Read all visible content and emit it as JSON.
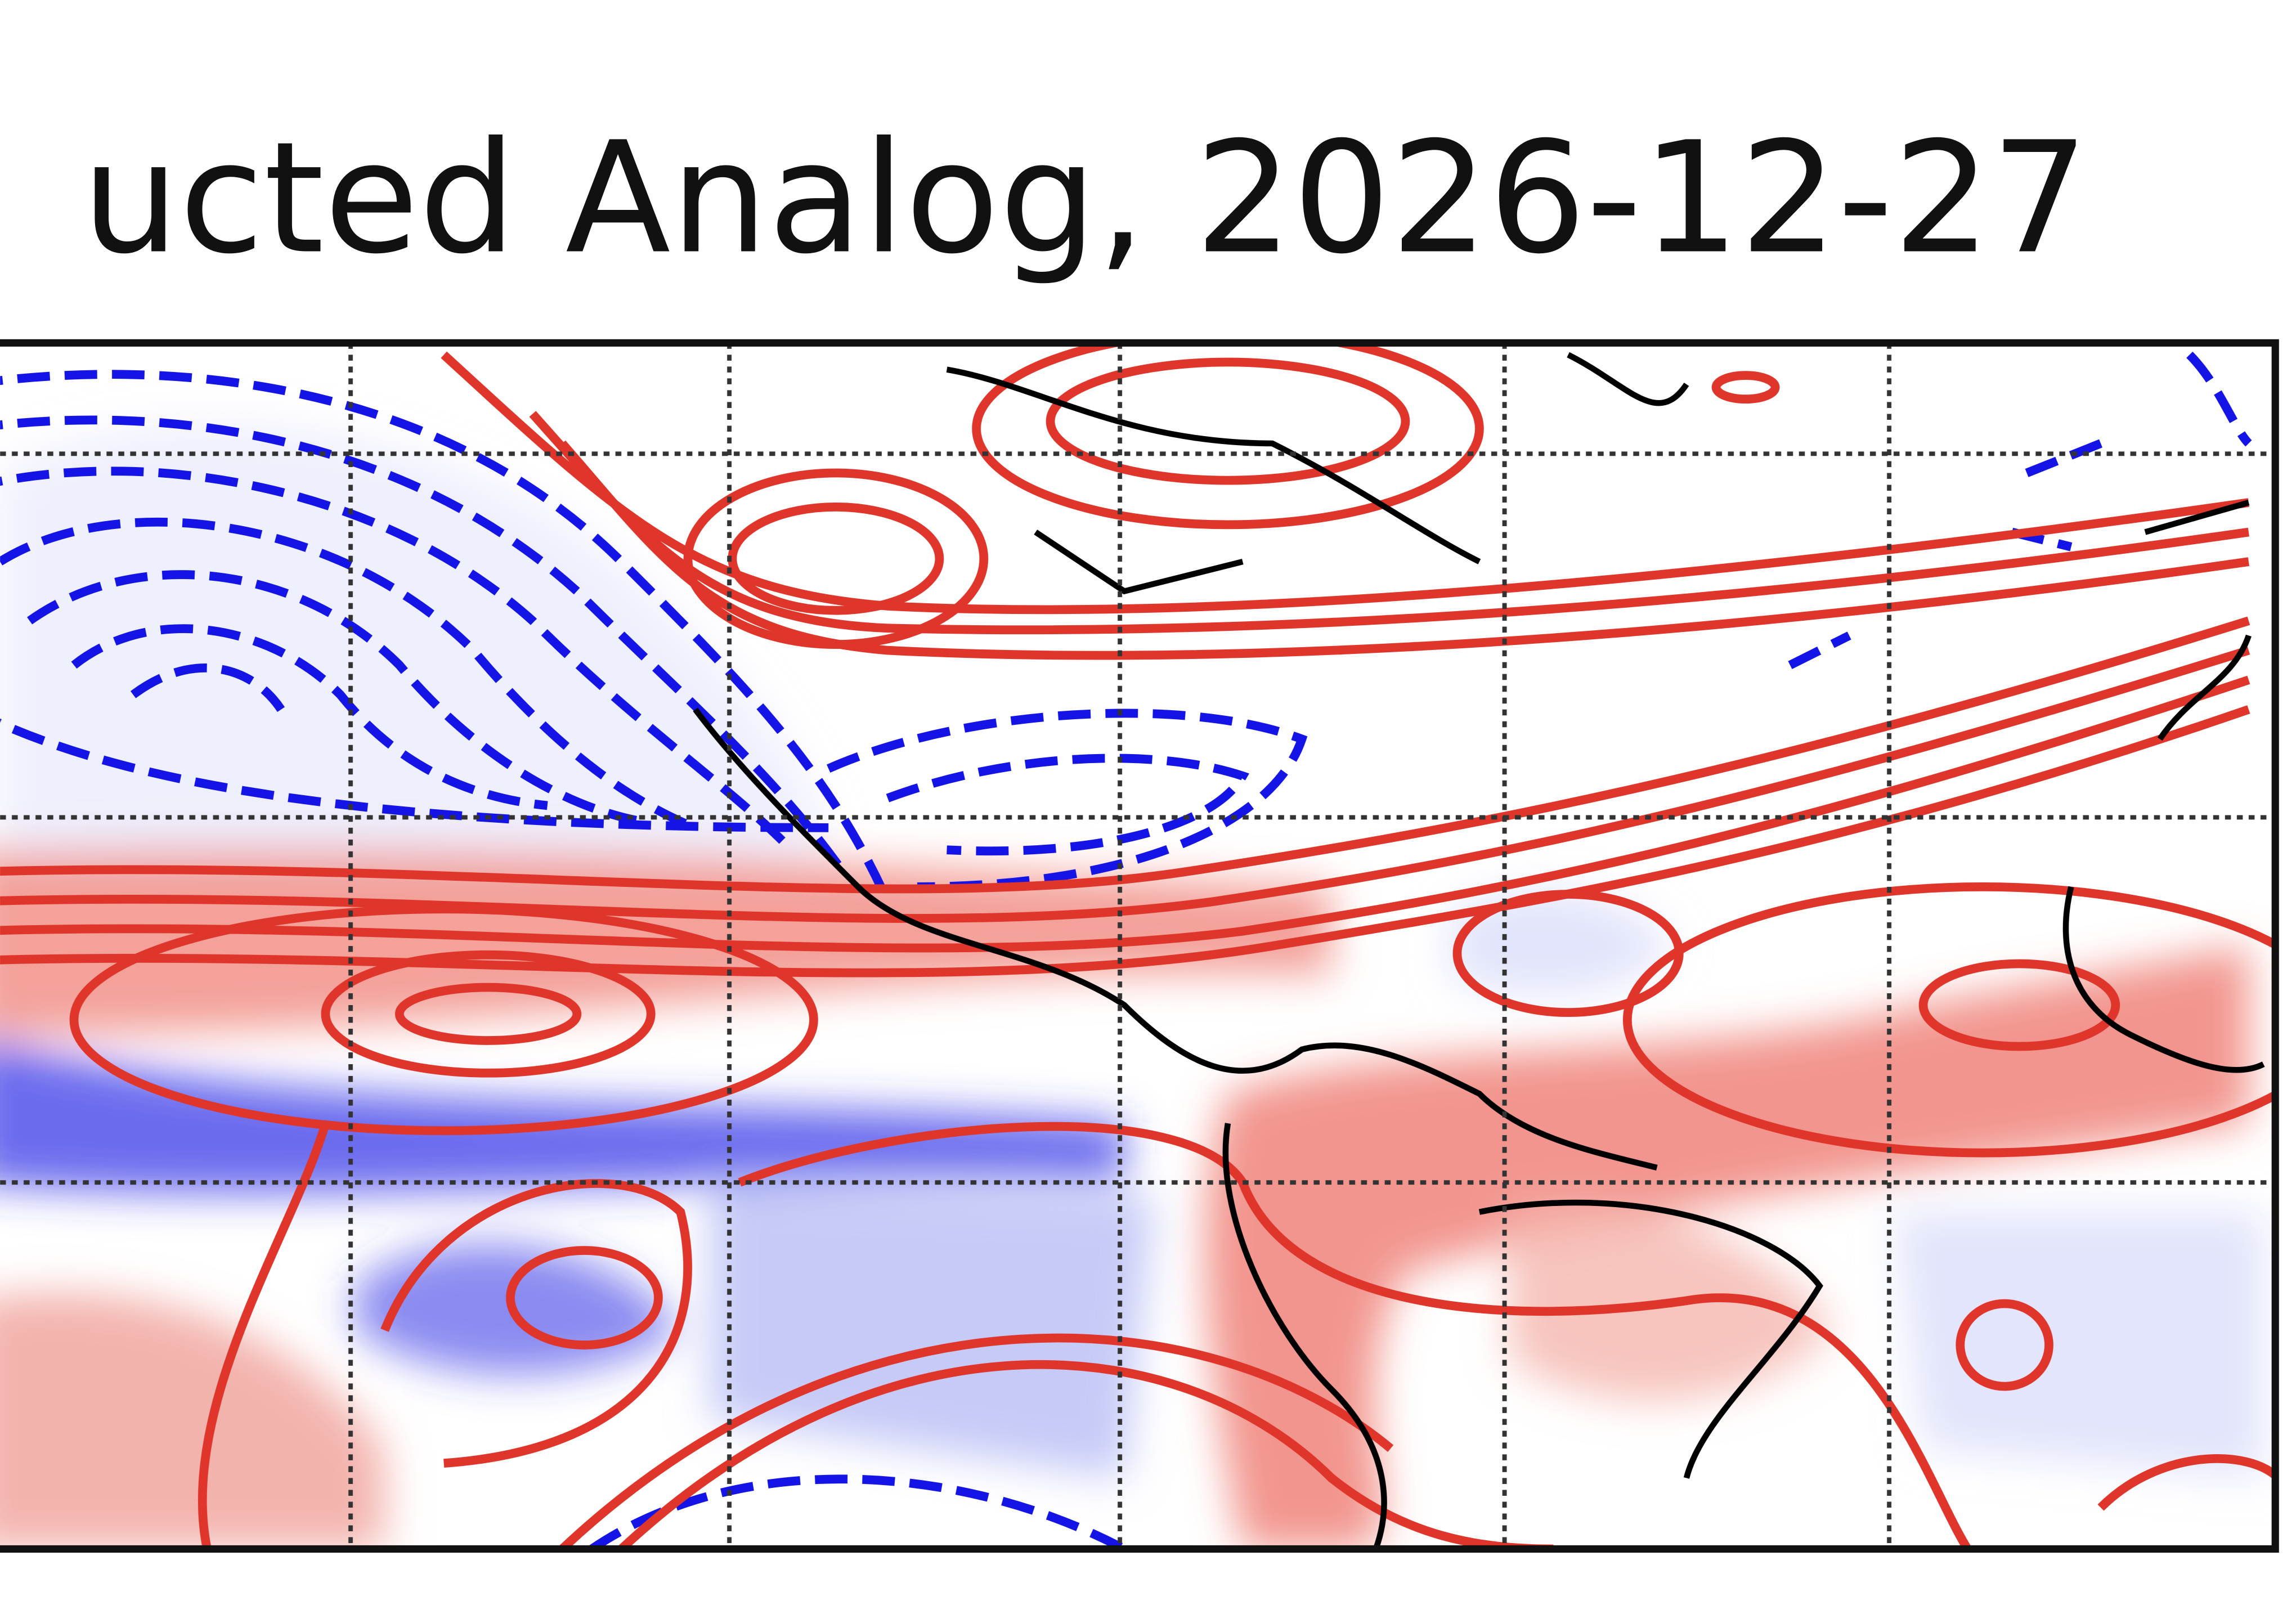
{
  "header": {
    "title": "ucted Analog, 2026-12-27"
  }
}
